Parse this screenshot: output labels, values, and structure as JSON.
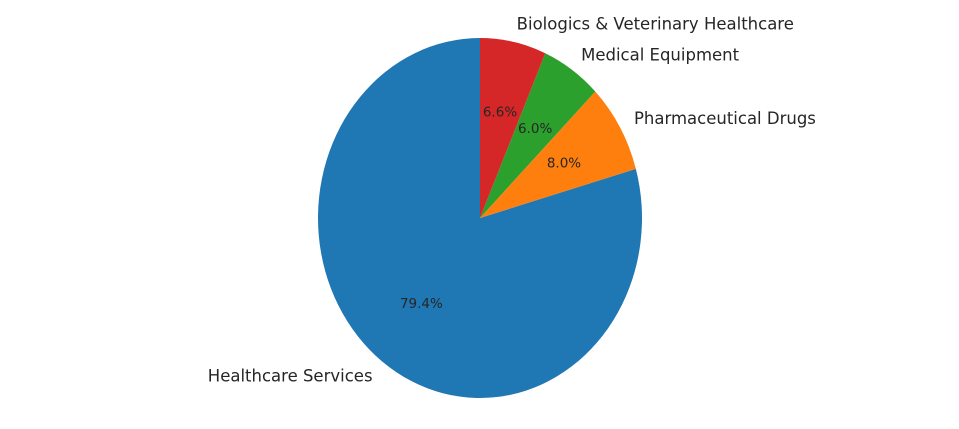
{
  "chart_data": {
    "type": "pie",
    "title": "",
    "start_angle_deg": 90,
    "direction": "counterclockwise",
    "slices": [
      {
        "label": "Healthcare Services",
        "value": 79.4,
        "pct_label": "79.4%",
        "color": "#1f77b4"
      },
      {
        "label": "Pharmaceutical Drugs",
        "value": 8.0,
        "pct_label": "8.0%",
        "color": "#ff7f0e"
      },
      {
        "label": "Medical Equipment",
        "value": 6.0,
        "pct_label": "6.0%",
        "color": "#2ca02c"
      },
      {
        "label": "Biologics & Veterinary Healthcare",
        "value": 6.6,
        "pct_label": "6.6%",
        "color": "#d62728"
      }
    ]
  }
}
